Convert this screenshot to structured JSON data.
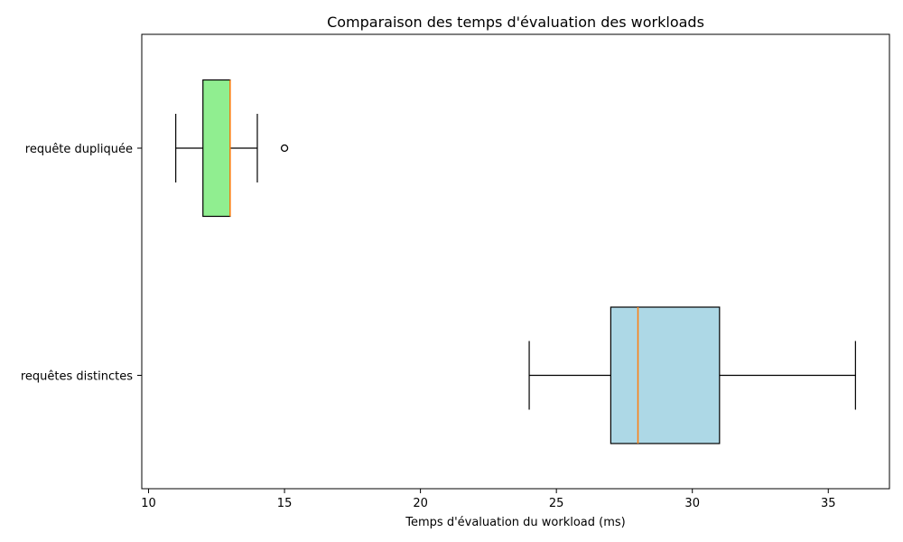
{
  "chart_data": {
    "type": "boxplot",
    "orientation": "horizontal",
    "title": "Comparaison des temps d'évaluation des workloads",
    "xlabel": "Temps d'évaluation du workload (ms)",
    "ylabel": "",
    "xlim": [
      9.75,
      37.25
    ],
    "xticks": [
      10,
      15,
      20,
      25,
      30,
      35
    ],
    "grid": false,
    "categories": [
      "requêtes distinctes",
      "requête dupliquée"
    ],
    "series": [
      {
        "category": "requêtes distinctes",
        "whisker_low": 24,
        "q1": 27,
        "median": 28,
        "q3": 31,
        "whisker_high": 36,
        "outliers": [],
        "fill": "#add8e6"
      },
      {
        "category": "requête dupliquée",
        "whisker_low": 11,
        "q1": 12,
        "median": 13,
        "q3": 13,
        "whisker_high": 14,
        "outliers": [
          15
        ],
        "fill": "#90ee90"
      }
    ],
    "median_color": "#ff7f0e",
    "edge_color": "#000000"
  }
}
